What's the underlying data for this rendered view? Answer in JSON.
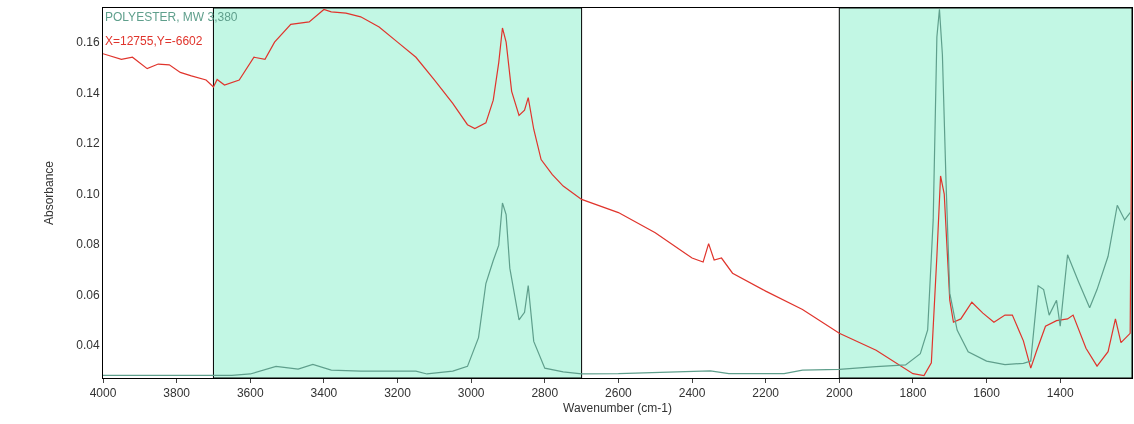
{
  "chart_data": {
    "type": "line",
    "xlabel": "Wavenumber (cm-1)",
    "ylabel": "Absorbance",
    "annotations": [
      "X=12755,Y=-6602"
    ],
    "xlim": [
      4000,
      1205
    ],
    "ylim": [
      0.027,
      0.1735
    ],
    "xticks": [
      4000,
      3800,
      3600,
      3400,
      3200,
      3000,
      2800,
      2600,
      2400,
      2200,
      2000,
      1800,
      1600,
      1400
    ],
    "yticks": [
      {
        "value": 0.04,
        "label": "0.04"
      },
      {
        "value": 0.06,
        "label": "0.06"
      },
      {
        "value": 0.08,
        "label": "0.08"
      },
      {
        "value": 0.1,
        "label": "0.10"
      },
      {
        "value": 0.12,
        "label": "0.12"
      },
      {
        "value": 0.14,
        "label": "0.14"
      },
      {
        "value": 0.16,
        "label": "0.16"
      }
    ],
    "grid": false,
    "legend": false,
    "marker": "none",
    "line_style": "solid",
    "bands": [
      {
        "axis": "x",
        "from": 3700,
        "to": 2700,
        "color": "#c2f7e4"
      },
      {
        "axis": "x",
        "from": 2000,
        "to": 1205,
        "color": "#c2f7e4"
      }
    ],
    "series": [
      {
        "color": "#e0342c",
        "x": [
          4000,
          3950,
          3920,
          3880,
          3850,
          3820,
          3790,
          3760,
          3720,
          3700,
          3690,
          3670,
          3630,
          3590,
          3560,
          3534,
          3490,
          3440,
          3400,
          3380,
          3340,
          3300,
          3250,
          3200,
          3150,
          3100,
          3050,
          3010,
          2990,
          2960,
          2940,
          2925,
          2915,
          2905,
          2890,
          2870,
          2855,
          2845,
          2830,
          2810,
          2780,
          2750,
          2700,
          2600,
          2500,
          2400,
          2370,
          2355,
          2340,
          2320,
          2290,
          2200,
          2100,
          2000,
          1900,
          1800,
          1770,
          1750,
          1735,
          1725,
          1715,
          1700,
          1690,
          1670,
          1640,
          1610,
          1580,
          1550,
          1530,
          1500,
          1480,
          1465,
          1440,
          1410,
          1380,
          1365,
          1330,
          1300,
          1270,
          1250,
          1235,
          1210,
          1205
        ],
        "values": [
          0.1554,
          0.1532,
          0.154,
          0.1495,
          0.1513,
          0.151,
          0.148,
          0.1466,
          0.145,
          0.1422,
          0.1452,
          0.143,
          0.145,
          0.154,
          0.1532,
          0.16,
          0.167,
          0.168,
          0.1729,
          0.172,
          0.1715,
          0.17,
          0.166,
          0.16,
          0.154,
          0.145,
          0.1357,
          0.1273,
          0.1258,
          0.128,
          0.137,
          0.152,
          0.1656,
          0.16,
          0.1405,
          0.131,
          0.133,
          0.138,
          0.1255,
          0.1135,
          0.1076,
          0.103,
          0.0977,
          0.0925,
          0.0845,
          0.0745,
          0.0729,
          0.0802,
          0.0737,
          0.0745,
          0.0685,
          0.0614,
          0.0541,
          0.0447,
          0.038,
          0.0287,
          0.028,
          0.033,
          0.0752,
          0.107,
          0.0998,
          0.0578,
          0.0491,
          0.0504,
          0.057,
          0.0527,
          0.0491,
          0.0519,
          0.0519,
          0.0417,
          0.0309,
          0.0374,
          0.0475,
          0.0497,
          0.0504,
          0.0519,
          0.0388,
          0.0317,
          0.0374,
          0.0504,
          0.041,
          0.0447,
          0.1447
        ]
      },
      {
        "name": "POLYESTER, MW 3,380",
        "color": "#5f9f8c",
        "x": [
          4000,
          3700,
          3650,
          3600,
          3530,
          3470,
          3430,
          3380,
          3300,
          3150,
          3120,
          3050,
          3010,
          2980,
          2960,
          2940,
          2925,
          2915,
          2905,
          2895,
          2870,
          2855,
          2845,
          2830,
          2800,
          2750,
          2700,
          2600,
          2350,
          2300,
          2150,
          2100,
          2000,
          1900,
          1820,
          1780,
          1760,
          1745,
          1735,
          1728,
          1720,
          1710,
          1700,
          1680,
          1650,
          1600,
          1550,
          1500,
          1480,
          1460,
          1445,
          1430,
          1410,
          1400,
          1380,
          1350,
          1320,
          1300,
          1270,
          1245,
          1225,
          1210
        ],
        "values": [
          0.028,
          0.028,
          0.028,
          0.0286,
          0.0316,
          0.0305,
          0.0324,
          0.0301,
          0.0297,
          0.0297,
          0.0286,
          0.0297,
          0.0316,
          0.043,
          0.0644,
          0.0735,
          0.0796,
          0.0963,
          0.0917,
          0.0705,
          0.05,
          0.053,
          0.0636,
          0.0415,
          0.0309,
          0.0294,
          0.0286,
          0.0287,
          0.0298,
          0.0287,
          0.0287,
          0.0301,
          0.0304,
          0.0315,
          0.0322,
          0.0366,
          0.046,
          0.0896,
          0.162,
          0.173,
          0.155,
          0.104,
          0.0606,
          0.046,
          0.0374,
          0.0337,
          0.0323,
          0.0328,
          0.0337,
          0.0635,
          0.062,
          0.0519,
          0.0578,
          0.0475,
          0.0758,
          0.065,
          0.0548,
          0.062,
          0.0752,
          0.0954,
          0.0896,
          0.0925
        ]
      }
    ]
  }
}
